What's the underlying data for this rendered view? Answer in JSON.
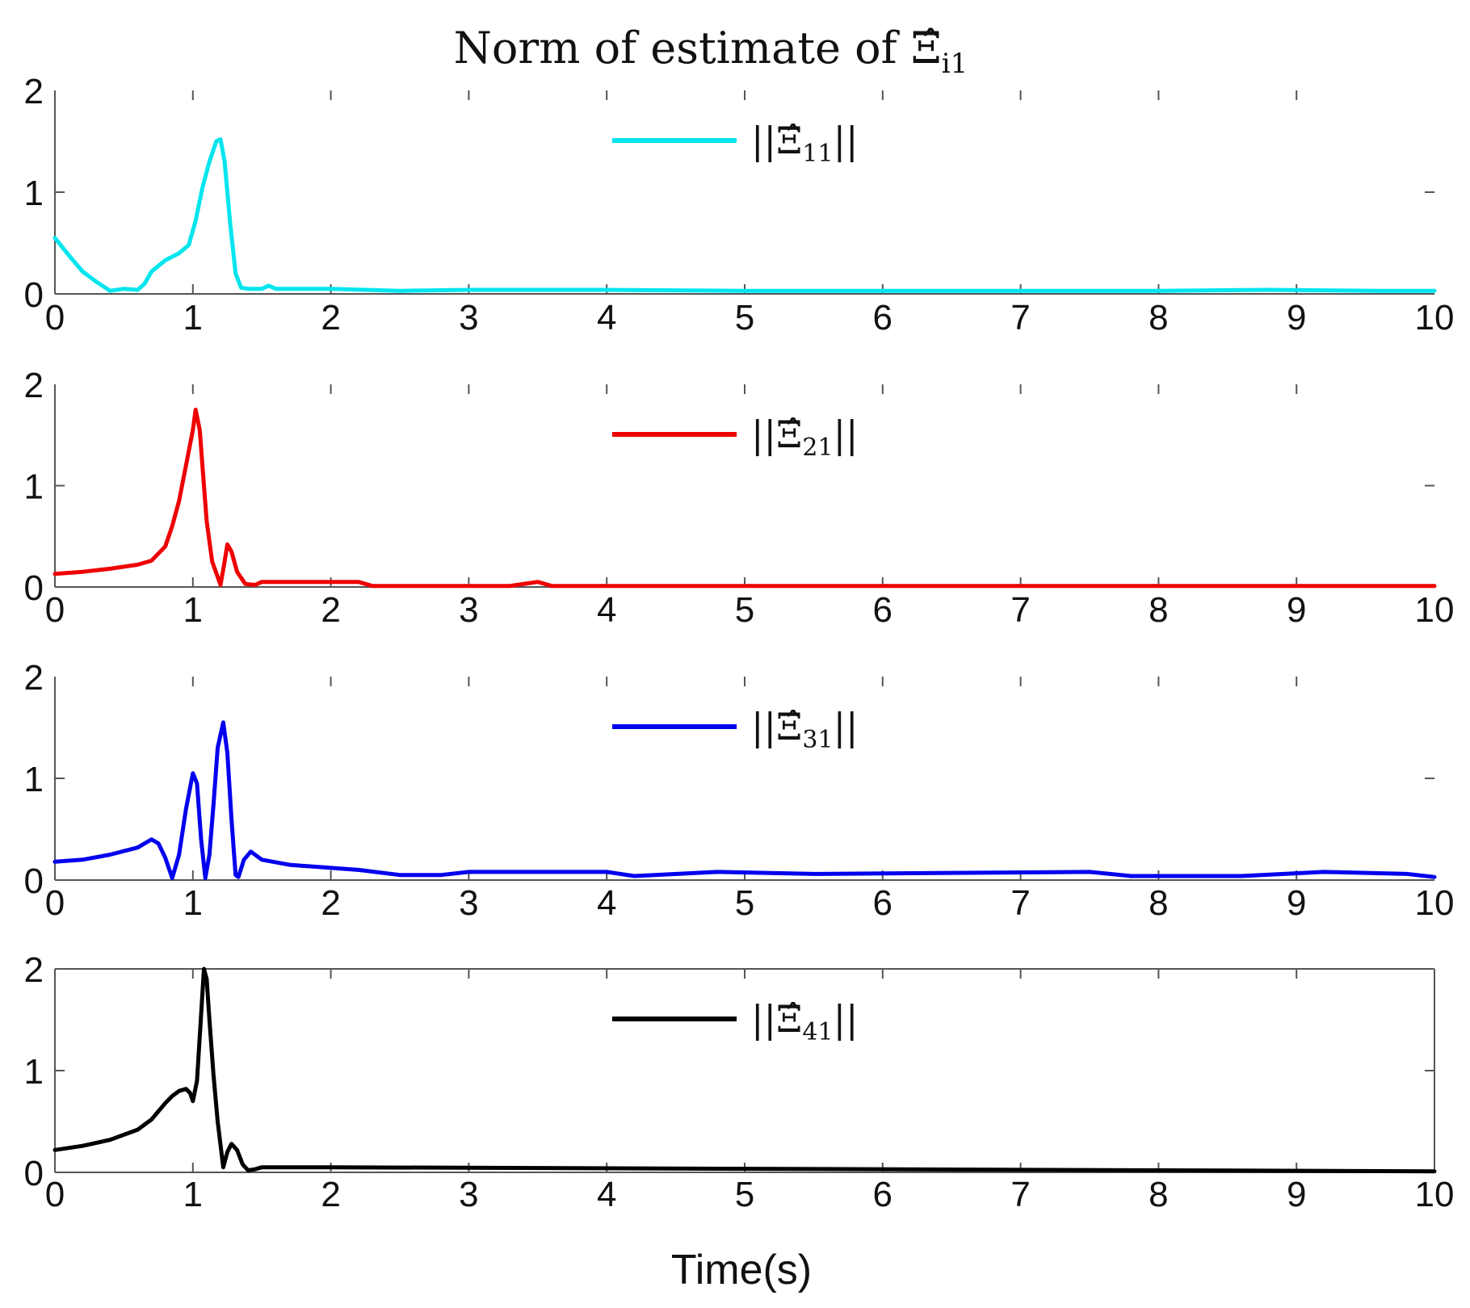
{
  "chart_data": {
    "type": "line",
    "title": "Norm of estimate of Ξ̂",
    "title_subscript": "i1",
    "xlabel": "Time(s)",
    "xlim": [
      0,
      10
    ],
    "ylim": [
      0,
      2
    ],
    "xticks": [
      0,
      1,
      2,
      3,
      4,
      5,
      6,
      7,
      8,
      9,
      10
    ],
    "yticks": [
      0,
      1,
      2
    ],
    "grid": false,
    "legend_position": "top-center",
    "panels": [
      {
        "legend": {
          "label": "||Ξ̂",
          "subscript": "11",
          "suffix": "||"
        },
        "color": "#00e5ee",
        "x": [
          0,
          0.1,
          0.2,
          0.3,
          0.4,
          0.5,
          0.6,
          0.65,
          0.7,
          0.8,
          0.9,
          0.97,
          1.02,
          1.07,
          1.12,
          1.17,
          1.2,
          1.23,
          1.27,
          1.31,
          1.35,
          1.4,
          1.5,
          1.55,
          1.6,
          2,
          2.5,
          3,
          4,
          5,
          6,
          7,
          8,
          8.8,
          9.6,
          10
        ],
        "values": [
          0.55,
          0.38,
          0.22,
          0.12,
          0.03,
          0.05,
          0.04,
          0.1,
          0.22,
          0.33,
          0.4,
          0.48,
          0.72,
          1.05,
          1.3,
          1.5,
          1.52,
          1.3,
          0.7,
          0.2,
          0.06,
          0.05,
          0.05,
          0.08,
          0.05,
          0.05,
          0.03,
          0.04,
          0.04,
          0.03,
          0.03,
          0.03,
          0.03,
          0.04,
          0.03,
          0.03
        ]
      },
      {
        "legend": {
          "label": "||Ξ̂",
          "subscript": "21",
          "suffix": "||"
        },
        "color": "#ee0000",
        "x": [
          0,
          0.2,
          0.4,
          0.6,
          0.7,
          0.8,
          0.85,
          0.9,
          0.95,
          1.0,
          1.02,
          1.05,
          1.08,
          1.1,
          1.14,
          1.18,
          1.2,
          1.23,
          1.25,
          1.28,
          1.32,
          1.38,
          1.45,
          1.5,
          2.2,
          2.3,
          3.3,
          3.5,
          3.6,
          4,
          10
        ],
        "values": [
          0.13,
          0.15,
          0.18,
          0.22,
          0.26,
          0.4,
          0.6,
          0.85,
          1.2,
          1.55,
          1.75,
          1.55,
          1.0,
          0.65,
          0.25,
          0.1,
          0.02,
          0.25,
          0.42,
          0.35,
          0.15,
          0.03,
          0.02,
          0.05,
          0.05,
          0.01,
          0.01,
          0.05,
          0.01,
          0.01,
          0.01
        ]
      },
      {
        "legend": {
          "label": "||Ξ̂",
          "subscript": "31",
          "suffix": "||"
        },
        "color": "#0000ee",
        "x": [
          0,
          0.2,
          0.4,
          0.6,
          0.7,
          0.75,
          0.8,
          0.85,
          0.9,
          0.95,
          1.0,
          1.03,
          1.06,
          1.09,
          1.12,
          1.15,
          1.18,
          1.22,
          1.25,
          1.28,
          1.31,
          1.33,
          1.37,
          1.42,
          1.5,
          1.7,
          2,
          2.2,
          2.5,
          2.8,
          3,
          4,
          4.2,
          4.8,
          5.5,
          7.5,
          7.8,
          8.6,
          9.2,
          9.8,
          10
        ],
        "values": [
          0.18,
          0.2,
          0.25,
          0.32,
          0.4,
          0.36,
          0.22,
          0.02,
          0.25,
          0.7,
          1.05,
          0.95,
          0.4,
          0.02,
          0.25,
          0.75,
          1.3,
          1.55,
          1.25,
          0.6,
          0.05,
          0.03,
          0.2,
          0.28,
          0.2,
          0.15,
          0.12,
          0.1,
          0.05,
          0.05,
          0.08,
          0.08,
          0.04,
          0.08,
          0.06,
          0.08,
          0.04,
          0.04,
          0.08,
          0.06,
          0.03
        ]
      },
      {
        "legend": {
          "label": "||Ξ̂",
          "subscript": "41",
          "suffix": "||"
        },
        "color": "#000000",
        "x": [
          0,
          0.2,
          0.4,
          0.6,
          0.7,
          0.8,
          0.85,
          0.9,
          0.95,
          0.98,
          1.0,
          1.03,
          1.06,
          1.08,
          1.1,
          1.12,
          1.15,
          1.18,
          1.22,
          1.25,
          1.28,
          1.32,
          1.36,
          1.4,
          1.45,
          1.5,
          2,
          10
        ],
        "values": [
          0.22,
          0.26,
          0.32,
          0.42,
          0.52,
          0.68,
          0.75,
          0.8,
          0.82,
          0.78,
          0.7,
          0.9,
          1.55,
          2.0,
          1.9,
          1.5,
          0.95,
          0.5,
          0.05,
          0.2,
          0.28,
          0.22,
          0.08,
          0.02,
          0.03,
          0.05,
          0.05,
          0.01
        ]
      }
    ]
  }
}
